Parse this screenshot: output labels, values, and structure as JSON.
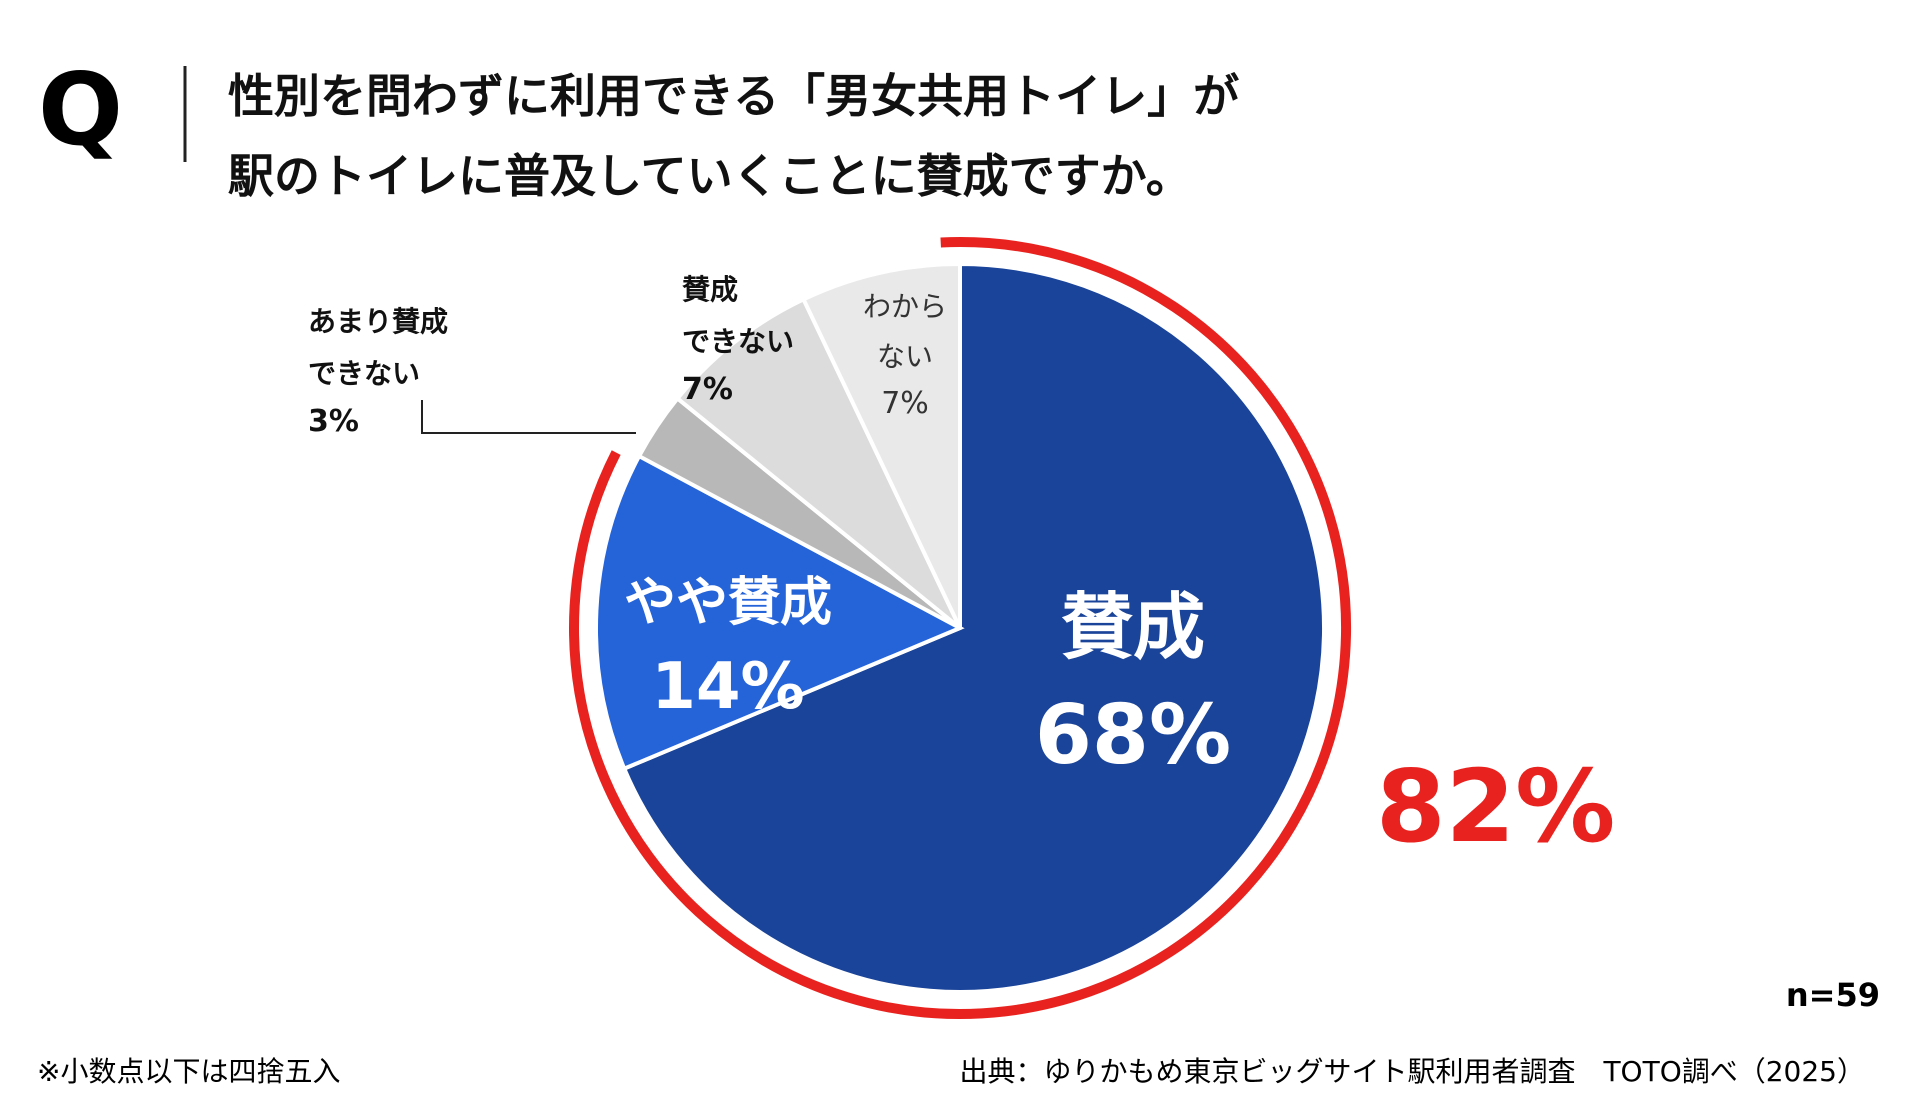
{
  "question_mark": "Q",
  "chart_data": {
    "type": "pie",
    "title": "性別を問わずに利用できる「男女共用トイレ」が\n駅のトイレに普及していくことに賛成ですか。",
    "categories": [
      "賛成",
      "やや賛成",
      "あまり賛成\nできない",
      "賛成\nできない",
      "わから\nない"
    ],
    "values": [
      68,
      14,
      3,
      7,
      7
    ],
    "value_labels": [
      "68%",
      "14%",
      "3%",
      "7%",
      "7%"
    ],
    "colors": [
      "#1a4499",
      "#2563d9",
      "#b8b8b8",
      "#dcdcdc",
      "#e9e9e9"
    ],
    "highlight_value": 82,
    "highlight_label": "82%",
    "highlight_color": "#e8231f",
    "sample_size": "n=59",
    "note": "※小数点以下は四捨五入",
    "source": "出典：ゆりかもめ東京ビッグサイト駅利用者調査　TOTO調べ（2025）"
  }
}
